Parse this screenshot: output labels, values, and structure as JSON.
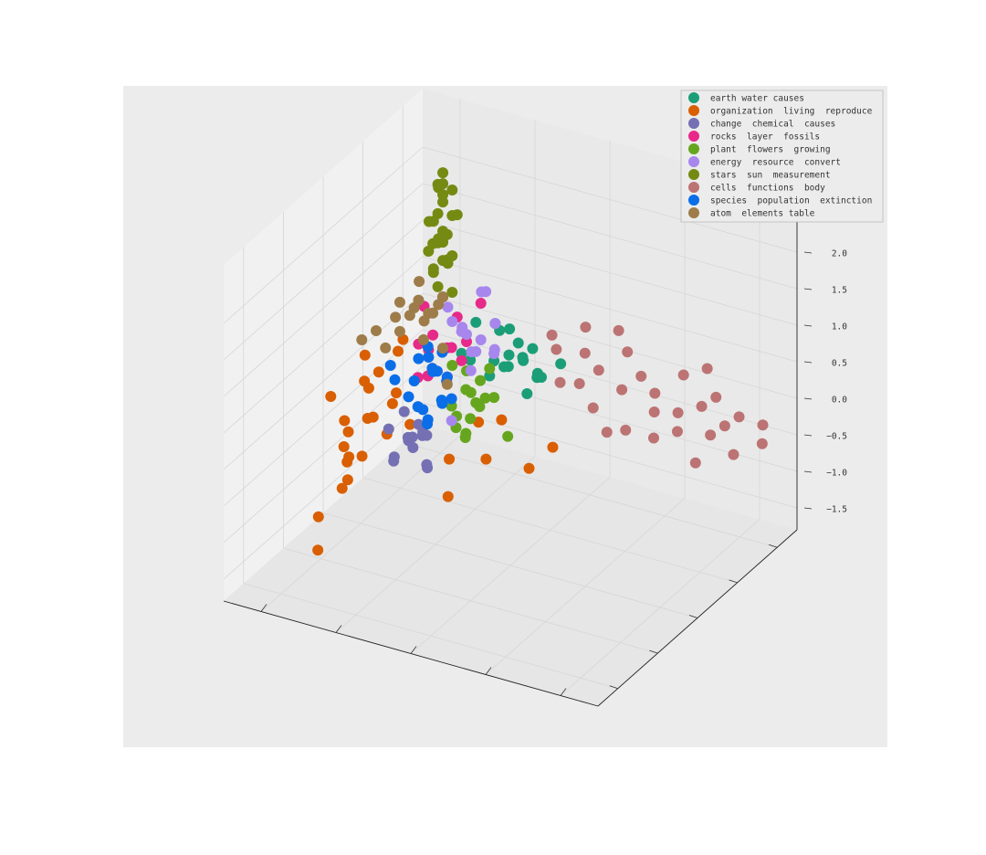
{
  "chart_data": {
    "type": "scatter3d",
    "legend": "upper right",
    "xlim": [
      -3,
      1
    ],
    "ylim": [
      -2.4,
      1.6
    ],
    "zlim": [
      -1.8,
      2.8
    ],
    "zticks": [
      {
        "value": 2,
        "label": "2.0"
      },
      1.5,
      {
        "value": 1,
        "label": "1.0"
      },
      0.5,
      {
        "value": 0,
        "label": "0.0"
      },
      {
        "value": -0.5,
        "label": "−0.5"
      },
      {
        "value": -1,
        "label": "−1.0"
      },
      {
        "value": -1.5,
        "label": "−1.5"
      }
    ],
    "grid": true,
    "series": [
      {
        "name": "earth water causes",
        "color": "#1b9e77",
        "x": [
          -0.4,
          -0.5,
          -0.6,
          -0.3,
          -0.7,
          -0.5,
          -0.2,
          -0.8,
          -0.4,
          -0.6,
          -0.1,
          -0.3,
          -0.5,
          -0.9,
          -0.2,
          -0.7,
          -0.4,
          0.0,
          -0.6,
          -0.3
        ],
        "y": [
          0.7,
          0.8,
          0.6,
          0.9,
          0.7,
          0.5,
          0.8,
          0.6,
          0.4,
          0.9,
          0.6,
          0.5,
          0.7,
          0.8,
          0.3,
          0.5,
          0.6,
          0.5,
          0.8,
          0.7
        ],
        "z": [
          0.2,
          0.1,
          0.3,
          0.4,
          0.0,
          0.2,
          0.5,
          0.1,
          0.3,
          -0.1,
          0.6,
          0.0,
          0.4,
          0.2,
          0.3,
          -0.1,
          0.1,
          0.2,
          0.3,
          0.5
        ]
      },
      {
        "name": "organization  living  reproduce",
        "color": "#d95f02",
        "x": [
          0.0,
          0.1,
          0.2,
          0.3,
          -0.1,
          0.1,
          0.0,
          0.2,
          0.4,
          0.3,
          -0.9,
          -1.2,
          -1.4,
          -0.6,
          -0.8,
          0.5,
          0.2,
          0.1,
          0.3,
          0.0,
          -0.4,
          0.2,
          0.6,
          0.1,
          -0.3,
          0.2,
          0.4,
          0.0,
          -0.5,
          0.3
        ],
        "y": [
          -1.0,
          -1.2,
          -1.4,
          -0.8,
          -1.0,
          -1.6,
          -1.9,
          -2.0,
          -1.1,
          -0.6,
          -0.7,
          -0.4,
          -0.3,
          -0.9,
          -0.2,
          -0.5,
          -0.3,
          -0.7,
          -1.3,
          -1.5,
          -0.5,
          -0.9,
          -1.0,
          -2.2,
          -1.1,
          -0.4,
          -0.7,
          -1.8,
          -0.1,
          -1.2
        ],
        "z": [
          0.0,
          0.3,
          0.2,
          0.4,
          0.6,
          -0.3,
          -0.2,
          -0.6,
          0.1,
          0.5,
          -0.2,
          -0.4,
          -0.1,
          -0.7,
          0.0,
          0.6,
          0.8,
          0.2,
          -0.1,
          0.0,
          -0.5,
          0.1,
          0.3,
          -0.9,
          0.3,
          0.7,
          0.4,
          0.1,
          -0.2,
          -0.3
        ]
      },
      {
        "name": "change  chemical  causes",
        "color": "#7570b3",
        "x": [
          0.2,
          0.3,
          0.1,
          0.4,
          0.2,
          0.0,
          0.3,
          0.1,
          0.2,
          0.4,
          0.3,
          0.1,
          0.2,
          0.0,
          0.3
        ],
        "y": [
          -0.2,
          0.0,
          -0.3,
          -0.1,
          0.1,
          -0.2,
          -0.4,
          0.0,
          -0.1,
          0.1,
          -0.3,
          -0.1,
          0.0,
          -0.2,
          0.2
        ],
        "z": [
          -0.6,
          -0.8,
          -0.5,
          -1.0,
          -0.7,
          -0.9,
          -0.4,
          -1.1,
          -0.8,
          -0.5,
          -0.9,
          -0.6,
          -0.3,
          -0.5,
          -0.7
        ]
      },
      {
        "name": "rocks  layer  fossils",
        "color": "#e7298a",
        "x": [
          0.1,
          0.2,
          0.0,
          0.3,
          0.1,
          0.2,
          0.0,
          0.4,
          0.1,
          0.2,
          0.3,
          0.0,
          0.1,
          0.2,
          -0.1
        ],
        "y": [
          0.4,
          0.3,
          0.5,
          0.4,
          0.6,
          0.2,
          0.3,
          0.5,
          0.1,
          0.5,
          0.2,
          0.6,
          0.4,
          0.0,
          0.7
        ],
        "z": [
          0.3,
          0.5,
          0.1,
          0.2,
          0.6,
          0.0,
          0.4,
          0.7,
          0.2,
          0.9,
          0.4,
          0.3,
          -0.1,
          0.1,
          0.8
        ]
      },
      {
        "name": "plant  flowers  growing",
        "color": "#66a61e",
        "x": [
          -0.1,
          0.0,
          -0.2,
          -0.1,
          0.0,
          -0.3,
          -0.2,
          0.1,
          -0.1,
          -0.4,
          0.0,
          -0.2,
          -0.1,
          -0.3,
          0.0,
          -0.2,
          -0.6,
          -0.1
        ],
        "y": [
          0.4,
          0.3,
          0.5,
          0.6,
          0.4,
          0.3,
          0.2,
          0.5,
          0.5,
          0.4,
          0.6,
          0.3,
          0.2,
          0.5,
          0.1,
          0.6,
          0.3,
          0.4
        ],
        "z": [
          -0.2,
          -0.4,
          -0.1,
          -0.5,
          -0.6,
          -0.3,
          -0.7,
          0.0,
          -0.3,
          -0.2,
          -0.1,
          -0.5,
          -0.6,
          0.1,
          -0.2,
          -0.4,
          -0.6,
          -0.8
        ]
      },
      {
        "name": "energy  resource  convert",
        "color": "#a787ee",
        "x": [
          0.0,
          -0.1,
          0.1,
          -0.2,
          0.0,
          -0.1,
          0.1,
          0.0,
          -0.3,
          -0.1,
          0.0,
          0.2,
          -0.1,
          -0.4,
          0.0
        ],
        "y": [
          0.6,
          0.7,
          0.5,
          0.8,
          0.9,
          0.6,
          0.7,
          0.5,
          0.6,
          0.8,
          0.7,
          0.6,
          0.5,
          0.4,
          0.3
        ],
        "z": [
          0.4,
          0.3,
          0.6,
          0.5,
          0.8,
          0.2,
          0.4,
          0.5,
          0.3,
          0.9,
          0.1,
          0.7,
          0.0,
          0.4,
          -0.6
        ]
      },
      {
        "name": "stars  sun  measurement",
        "color": "#758a12",
        "x": [
          0.2,
          0.2,
          0.1,
          0.3,
          0.2,
          0.2,
          0.1,
          0.3,
          0.2,
          0.2,
          0.3,
          0.1,
          0.2,
          0.2,
          0.3,
          0.2,
          0.1,
          0.2,
          0.4,
          0.2,
          0.2,
          0.1,
          0.3,
          0.2,
          0.2,
          0.1,
          0.2,
          0.3
        ],
        "y": [
          0.5,
          0.4,
          0.5,
          0.6,
          0.5,
          0.4,
          0.6,
          0.5,
          0.5,
          0.4,
          0.6,
          0.5,
          0.5,
          0.6,
          0.5,
          0.4,
          0.5,
          0.5,
          0.6,
          0.5,
          0.3,
          0.5,
          0.4,
          0.6,
          0.5,
          0.4,
          0.5,
          0.5
        ],
        "z": [
          2.6,
          2.5,
          2.4,
          2.3,
          2.2,
          2.1,
          2.0,
          1.9,
          1.8,
          1.7,
          1.6,
          1.5,
          1.4,
          1.3,
          1.2,
          1.1,
          1.0,
          0.9,
          1.8,
          2.45,
          1.75,
          2.05,
          1.55,
          1.35,
          2.3,
          1.85,
          1.65,
          1.25
        ]
      },
      {
        "name": "cells  functions  body",
        "color": "#bc7373",
        "x": [
          -0.8,
          -1.0,
          -1.1,
          -1.2,
          -1.3,
          -1.4,
          -1.5,
          -1.6,
          -1.7,
          -1.8,
          -1.9,
          -2.0,
          -2.1,
          -2.2,
          -2.3,
          -2.4,
          -2.5,
          -2.6,
          -2.7,
          -2.8,
          -2.9,
          -3.0,
          -1.0,
          -0.9,
          -1.5,
          -2.2,
          -2.5,
          -1.2,
          -0.7,
          -2.0
        ],
        "y": [
          0.9,
          1.1,
          0.8,
          1.0,
          0.7,
          1.2,
          0.9,
          1.1,
          0.6,
          1.0,
          0.8,
          1.2,
          0.9,
          0.7,
          1.0,
          1.1,
          0.8,
          0.9,
          1.0,
          0.7,
          1.1,
          0.9,
          0.6,
          1.3,
          0.6,
          1.3,
          0.5,
          1.4,
          1.0,
          0.6
        ],
        "z": [
          0.3,
          0.2,
          0.0,
          0.1,
          -0.2,
          0.3,
          0.0,
          0.1,
          -0.3,
          0.0,
          -0.1,
          0.2,
          -0.1,
          -0.2,
          0.0,
          0.1,
          -0.2,
          -0.1,
          0.0,
          -0.3,
          -0.1,
          -0.2,
          0.1,
          0.4,
          -0.4,
          0.3,
          -0.4,
          0.4,
          0.4,
          -0.3
        ]
      },
      {
        "name": "species  population  extinction",
        "color": "#0a6ee8",
        "x": [
          0.1,
          0.2,
          0.0,
          0.1,
          0.3,
          0.2,
          0.1,
          0.0,
          0.2,
          0.4,
          0.1,
          0.3,
          0.5,
          0.2,
          0.1,
          0.0,
          0.3,
          0.2,
          0.6,
          0.1
        ],
        "y": [
          0.2,
          0.3,
          0.1,
          0.4,
          0.2,
          0.0,
          0.3,
          0.2,
          0.1,
          0.3,
          0.0,
          0.4,
          0.1,
          0.2,
          0.1,
          0.3,
          0.0,
          0.2,
          0.2,
          0.3
        ],
        "z": [
          0.1,
          0.0,
          -0.2,
          -0.1,
          0.2,
          -0.3,
          0.3,
          0.0,
          -0.4,
          -0.2,
          -0.5,
          0.1,
          -0.1,
          -0.6,
          0.2,
          -0.3,
          -0.2,
          0.4,
          0.0,
          -0.4
        ]
      },
      {
        "name": "atom  elements table",
        "color": "#9e7c4a",
        "x": [
          0.3,
          0.4,
          0.2,
          0.5,
          0.3,
          0.4,
          0.2,
          0.3,
          0.5,
          0.6,
          0.7,
          0.8,
          0.6,
          0.5,
          0.4,
          0.3,
          0.2,
          0.1
        ],
        "y": [
          0.4,
          0.3,
          0.5,
          0.4,
          0.2,
          0.5,
          0.3,
          0.6,
          0.2,
          0.3,
          0.1,
          0.0,
          0.1,
          0.2,
          0.4,
          0.3,
          0.5,
          0.4
        ],
        "z": [
          0.7,
          0.8,
          0.9,
          0.6,
          1.0,
          0.5,
          0.8,
          0.7,
          0.9,
          0.6,
          0.5,
          0.4,
          0.3,
          0.5,
          1.1,
          0.4,
          0.2,
          -0.2
        ]
      }
    ]
  }
}
